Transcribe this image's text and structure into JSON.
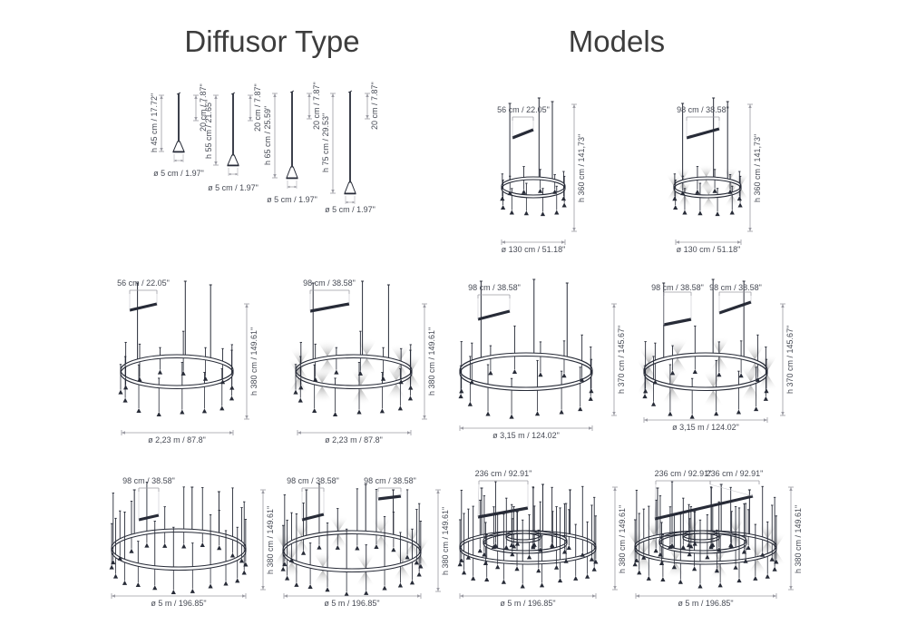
{
  "titles": {
    "diffusor_type": "Diffusor Type",
    "models": "Models"
  },
  "diffusors": [
    {
      "height": "h 45 cm / 17.72\"",
      "segment": "20 cm / 7.87\"",
      "diameter": "ø 5 cm / 1.97\""
    },
    {
      "height": "h 55 cm / 21.65\"",
      "segment": "20 cm / 7.87\"",
      "diameter": "ø 5 cm / 1.97\""
    },
    {
      "height": "h 65 cm / 25.59\"",
      "segment": "20 cm / 7.87\"",
      "diameter": "ø 5 cm / 1.97\""
    },
    {
      "height": "h 75 cm / 29.53\"",
      "segment": "20 cm / 7.87\"",
      "diameter": "ø 5 cm / 1.97\""
    }
  ],
  "models": [
    {
      "top_dims": [
        "56 cm / 22.05\""
      ],
      "height": "h 360 cm / 141,73\"",
      "diameter": "ø 130 cm / 51.18\""
    },
    {
      "top_dims": [
        "98 cm / 38.58\""
      ],
      "height": "h 360 cm / 141,73\"",
      "diameter": "ø 130 cm / 51.18\""
    },
    {
      "top_dims": [
        "56 cm / 22.05\""
      ],
      "height": "h 380 cm / 149.61\"",
      "diameter": "ø 2,23 m / 87.8\""
    },
    {
      "top_dims": [
        "98 cm / 38.58\""
      ],
      "height": "h 380 cm / 149.61\"",
      "diameter": "ø 2,23 m / 87.8\""
    },
    {
      "top_dims": [
        "98 cm / 38.58\""
      ],
      "height": "h 370 cm / 145.67\"",
      "diameter": "ø 3,15 m / 124.02\""
    },
    {
      "top_dims": [
        "98 cm / 38.58\"",
        "98 cm / 38.58\""
      ],
      "height": "h 370 cm / 145.67\"",
      "diameter": "ø 3,15 m / 124.02\""
    },
    {
      "top_dims": [
        "98 cm / 38.58\""
      ],
      "height": "h 380 cm / 149.61\"",
      "diameter": "ø 5 m / 196.85\""
    },
    {
      "top_dims": [
        "98 cm / 38.58\"",
        "98 cm / 38.58\""
      ],
      "height": "h 380 cm / 149.61\"",
      "diameter": "ø 5 m / 196.85\""
    },
    {
      "top_dims": [
        "236 cm / 92.91\""
      ],
      "height": "h 380 cm / 149.61\"",
      "diameter": "ø 5 m / 196.85\""
    },
    {
      "top_dims": [
        "236 cm / 92.91\"",
        "236 cm / 92.91\""
      ],
      "height": "h 380 cm / 149.61\"",
      "diameter": "ø 5 m / 196.85\""
    }
  ],
  "colors": {
    "line_art": "#272b37",
    "dimension_lines": "#9b9ba3",
    "label_text": "#474b55",
    "title_text": "#3d3d3d",
    "background": "#ffffff"
  }
}
